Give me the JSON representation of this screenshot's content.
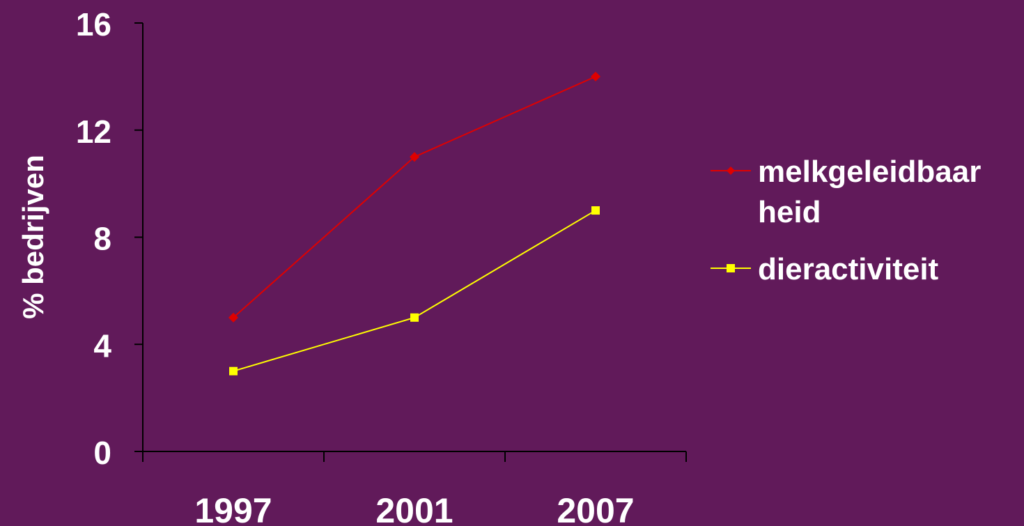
{
  "chart_data": {
    "type": "line",
    "title": "",
    "xlabel": "",
    "ylabel": "% bedrijven",
    "categories": [
      "1997",
      "2001",
      "2007"
    ],
    "ylim": [
      0,
      16
    ],
    "yticks": [
      "0",
      "4",
      "8",
      "12",
      "16"
    ],
    "grid": false,
    "legend_position": "right",
    "background_color": "#611a5a",
    "axis_color": "#000000",
    "text_color": "#ffffff",
    "series": [
      {
        "name": "melkgeleidbaarheid",
        "legend_lines": [
          "melkgeleidbaar",
          "heid"
        ],
        "values": [
          5,
          11,
          14
        ],
        "color": "#e00000",
        "marker": "diamond"
      },
      {
        "name": "dieractiviteit",
        "legend_lines": [
          "dieractiviteit"
        ],
        "values": [
          3,
          5,
          9
        ],
        "color": "#ffff00",
        "marker": "square"
      }
    ]
  }
}
